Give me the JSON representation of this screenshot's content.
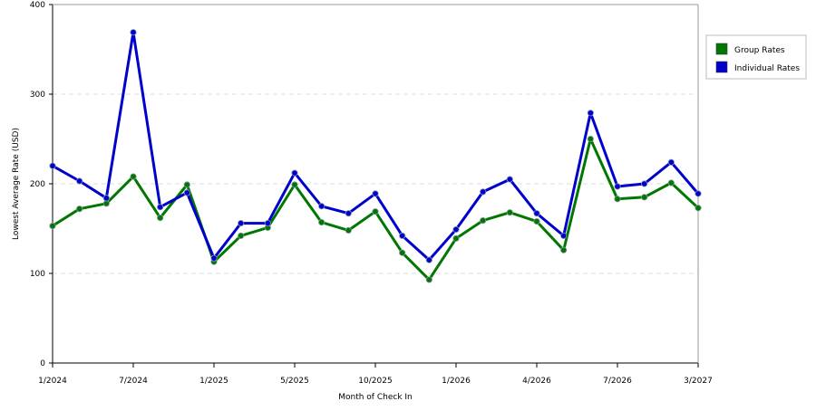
{
  "chart_data": {
    "type": "line",
    "xlabel": "Month of Check In",
    "ylabel": "Lowest Average Rate (USD)",
    "ylim": [
      0,
      400
    ],
    "yticks": [
      0,
      100,
      200,
      300,
      400
    ],
    "x_tick_labels": [
      "1/2024",
      "7/2024",
      "1/2025",
      "5/2025",
      "10/2025",
      "1/2026",
      "4/2026",
      "7/2026",
      "3/2027"
    ],
    "grid": "horizontal dashed",
    "legend_position": "right",
    "series": [
      {
        "name": "Group Rates",
        "color": "#007700",
        "values": [
          153,
          172,
          178,
          208,
          162,
          199,
          113,
          142,
          151,
          199,
          157,
          148,
          169,
          123,
          93,
          139,
          159,
          168,
          158,
          126,
          250,
          183,
          185,
          201,
          173
        ]
      },
      {
        "name": "Individual Rates",
        "color": "#0000cc",
        "values": [
          220,
          203,
          184,
          369,
          174,
          190,
          117,
          156,
          156,
          212,
          175,
          167,
          189,
          142,
          115,
          149,
          191,
          205,
          167,
          142,
          279,
          197,
          200,
          224,
          189
        ]
      }
    ]
  }
}
